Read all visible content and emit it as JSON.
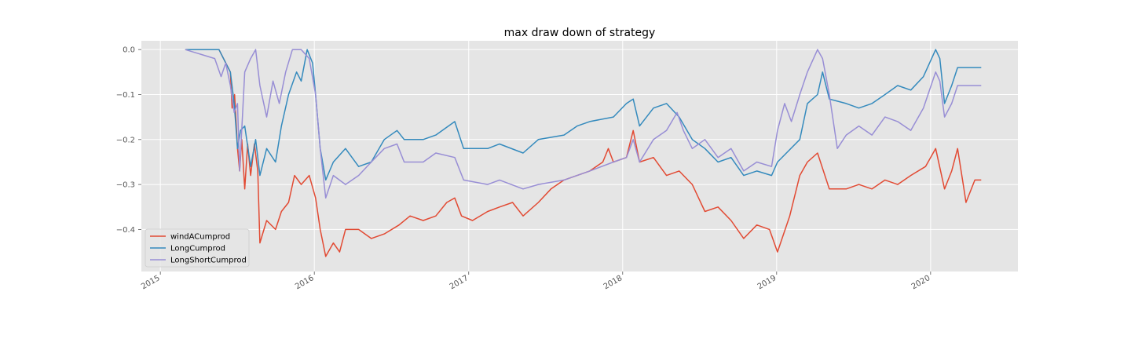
{
  "chart_data": {
    "type": "line",
    "title": "max draw down of strategy",
    "xlabel": "",
    "ylabel": "",
    "xlim": [
      "2014-11-17",
      "2020-07-26"
    ],
    "ylim": [
      -0.4935,
      0.0195
    ],
    "x_ticks": [
      "2015-01-01",
      "2016-01-01",
      "2017-01-01",
      "2018-01-01",
      "2019-01-01",
      "2020-01-01"
    ],
    "x_tick_labels": [
      "2015",
      "2016",
      "2017",
      "2018",
      "2019",
      "2020"
    ],
    "y_ticks": [
      0.0,
      -0.1,
      -0.2,
      -0.3,
      -0.4
    ],
    "y_tick_labels": [
      "0.0",
      "−0.1",
      "−0.2",
      "−0.3",
      "−0.4"
    ],
    "grid": true,
    "legend_position": "lower-left",
    "background": "#e5e5e5",
    "series": [
      {
        "name": "windACumprod",
        "color": "#e24a33",
        "points": [
          [
            "2015-03-01",
            0.0
          ],
          [
            "2015-05-20",
            0.0
          ],
          [
            "2015-06-16",
            -0.05
          ],
          [
            "2015-06-20",
            -0.13
          ],
          [
            "2015-06-26",
            -0.1
          ],
          [
            "2015-07-03",
            -0.22
          ],
          [
            "2015-07-08",
            -0.27
          ],
          [
            "2015-07-13",
            -0.2
          ],
          [
            "2015-07-20",
            -0.31
          ],
          [
            "2015-07-27",
            -0.21
          ],
          [
            "2015-08-03",
            -0.28
          ],
          [
            "2015-08-12",
            -0.21
          ],
          [
            "2015-08-20",
            -0.27
          ],
          [
            "2015-08-25",
            -0.43
          ],
          [
            "2015-09-10",
            -0.38
          ],
          [
            "2015-10-01",
            -0.4
          ],
          [
            "2015-10-15",
            -0.36
          ],
          [
            "2015-11-01",
            -0.34
          ],
          [
            "2015-11-15",
            -0.28
          ],
          [
            "2015-12-01",
            -0.3
          ],
          [
            "2015-12-20",
            -0.28
          ],
          [
            "2016-01-04",
            -0.33
          ],
          [
            "2016-01-15",
            -0.4
          ],
          [
            "2016-01-28",
            -0.46
          ],
          [
            "2016-02-15",
            -0.43
          ],
          [
            "2016-03-01",
            -0.45
          ],
          [
            "2016-03-15",
            -0.4
          ],
          [
            "2016-04-15",
            -0.4
          ],
          [
            "2016-05-15",
            -0.42
          ],
          [
            "2016-06-15",
            -0.41
          ],
          [
            "2016-07-20",
            -0.39
          ],
          [
            "2016-08-15",
            -0.37
          ],
          [
            "2016-09-15",
            -0.38
          ],
          [
            "2016-10-15",
            -0.37
          ],
          [
            "2016-11-10",
            -0.34
          ],
          [
            "2016-11-29",
            -0.33
          ],
          [
            "2016-12-15",
            -0.37
          ],
          [
            "2017-01-10",
            -0.38
          ],
          [
            "2017-02-15",
            -0.36
          ],
          [
            "2017-03-15",
            -0.35
          ],
          [
            "2017-04-15",
            -0.34
          ],
          [
            "2017-05-10",
            -0.37
          ],
          [
            "2017-06-15",
            -0.34
          ],
          [
            "2017-07-15",
            -0.31
          ],
          [
            "2017-08-15",
            -0.29
          ],
          [
            "2017-09-15",
            -0.28
          ],
          [
            "2017-10-15",
            -0.27
          ],
          [
            "2017-11-15",
            -0.25
          ],
          [
            "2017-11-28",
            -0.22
          ],
          [
            "2017-12-10",
            -0.25
          ],
          [
            "2018-01-10",
            -0.24
          ],
          [
            "2018-01-26",
            -0.18
          ],
          [
            "2018-02-10",
            -0.25
          ],
          [
            "2018-03-15",
            -0.24
          ],
          [
            "2018-04-15",
            -0.28
          ],
          [
            "2018-05-15",
            -0.27
          ],
          [
            "2018-06-15",
            -0.3
          ],
          [
            "2018-07-15",
            -0.36
          ],
          [
            "2018-08-15",
            -0.35
          ],
          [
            "2018-09-15",
            -0.38
          ],
          [
            "2018-10-15",
            -0.42
          ],
          [
            "2018-11-15",
            -0.39
          ],
          [
            "2018-12-15",
            -0.4
          ],
          [
            "2019-01-03",
            -0.45
          ],
          [
            "2019-02-01",
            -0.37
          ],
          [
            "2019-02-25",
            -0.28
          ],
          [
            "2019-03-15",
            -0.25
          ],
          [
            "2019-04-08",
            -0.23
          ],
          [
            "2019-05-06",
            -0.31
          ],
          [
            "2019-06-15",
            -0.31
          ],
          [
            "2019-07-15",
            -0.3
          ],
          [
            "2019-08-15",
            -0.31
          ],
          [
            "2019-09-15",
            -0.29
          ],
          [
            "2019-10-15",
            -0.3
          ],
          [
            "2019-11-15",
            -0.28
          ],
          [
            "2019-12-20",
            -0.26
          ],
          [
            "2020-01-13",
            -0.22
          ],
          [
            "2020-02-03",
            -0.31
          ],
          [
            "2020-02-20",
            -0.27
          ],
          [
            "2020-03-05",
            -0.22
          ],
          [
            "2020-03-20",
            -0.31
          ],
          [
            "2020-03-25",
            -0.34
          ],
          [
            "2020-04-15",
            -0.29
          ],
          [
            "2020-04-30",
            -0.29
          ]
        ]
      },
      {
        "name": "LongCumprod",
        "color": "#348abd",
        "points": [
          [
            "2015-03-01",
            0.0
          ],
          [
            "2015-05-20",
            0.0
          ],
          [
            "2015-06-16",
            -0.05
          ],
          [
            "2015-06-25",
            -0.12
          ],
          [
            "2015-07-03",
            -0.22
          ],
          [
            "2015-07-10",
            -0.18
          ],
          [
            "2015-07-20",
            -0.17
          ],
          [
            "2015-08-03",
            -0.26
          ],
          [
            "2015-08-15",
            -0.2
          ],
          [
            "2015-08-25",
            -0.28
          ],
          [
            "2015-09-10",
            -0.22
          ],
          [
            "2015-10-01",
            -0.25
          ],
          [
            "2015-10-15",
            -0.17
          ],
          [
            "2015-11-01",
            -0.1
          ],
          [
            "2015-11-20",
            -0.05
          ],
          [
            "2015-12-01",
            -0.07
          ],
          [
            "2015-12-15",
            0.0
          ],
          [
            "2015-12-28",
            -0.03
          ],
          [
            "2016-01-04",
            -0.1
          ],
          [
            "2016-01-15",
            -0.22
          ],
          [
            "2016-01-28",
            -0.29
          ],
          [
            "2016-02-15",
            -0.25
          ],
          [
            "2016-03-15",
            -0.22
          ],
          [
            "2016-04-15",
            -0.26
          ],
          [
            "2016-05-15",
            -0.25
          ],
          [
            "2016-06-15",
            -0.2
          ],
          [
            "2016-07-15",
            -0.18
          ],
          [
            "2016-08-01",
            -0.2
          ],
          [
            "2016-09-15",
            -0.2
          ],
          [
            "2016-10-15",
            -0.19
          ],
          [
            "2016-11-29",
            -0.16
          ],
          [
            "2016-12-20",
            -0.22
          ],
          [
            "2017-02-15",
            -0.22
          ],
          [
            "2017-03-15",
            -0.21
          ],
          [
            "2017-05-10",
            -0.23
          ],
          [
            "2017-06-15",
            -0.2
          ],
          [
            "2017-08-15",
            -0.19
          ],
          [
            "2017-09-15",
            -0.17
          ],
          [
            "2017-10-15",
            -0.16
          ],
          [
            "2017-12-10",
            -0.15
          ],
          [
            "2018-01-10",
            -0.12
          ],
          [
            "2018-01-26",
            -0.11
          ],
          [
            "2018-02-10",
            -0.17
          ],
          [
            "2018-03-15",
            -0.13
          ],
          [
            "2018-04-15",
            -0.12
          ],
          [
            "2018-05-15",
            -0.15
          ],
          [
            "2018-06-15",
            -0.2
          ],
          [
            "2018-07-15",
            -0.22
          ],
          [
            "2018-08-15",
            -0.25
          ],
          [
            "2018-09-15",
            -0.24
          ],
          [
            "2018-10-15",
            -0.28
          ],
          [
            "2018-11-15",
            -0.27
          ],
          [
            "2018-12-20",
            -0.28
          ],
          [
            "2019-01-03",
            -0.25
          ],
          [
            "2019-02-25",
            -0.2
          ],
          [
            "2019-03-15",
            -0.12
          ],
          [
            "2019-04-08",
            -0.1
          ],
          [
            "2019-04-20",
            -0.05
          ],
          [
            "2019-05-06",
            -0.11
          ],
          [
            "2019-06-15",
            -0.12
          ],
          [
            "2019-07-15",
            -0.13
          ],
          [
            "2019-08-15",
            -0.12
          ],
          [
            "2019-09-15",
            -0.1
          ],
          [
            "2019-10-15",
            -0.08
          ],
          [
            "2019-11-15",
            -0.09
          ],
          [
            "2019-12-15",
            -0.06
          ],
          [
            "2020-01-13",
            0.0
          ],
          [
            "2020-01-23",
            -0.02
          ],
          [
            "2020-02-03",
            -0.12
          ],
          [
            "2020-02-20",
            -0.08
          ],
          [
            "2020-03-05",
            -0.04
          ],
          [
            "2020-04-30",
            -0.04
          ]
        ]
      },
      {
        "name": "LongShortCumprod",
        "color": "#988ed5",
        "points": [
          [
            "2015-03-01",
            0.0
          ],
          [
            "2015-05-10",
            -0.02
          ],
          [
            "2015-05-25",
            -0.06
          ],
          [
            "2015-06-05",
            -0.03
          ],
          [
            "2015-06-16",
            -0.08
          ],
          [
            "2015-06-25",
            -0.14
          ],
          [
            "2015-07-03",
            -0.12
          ],
          [
            "2015-07-08",
            -0.27
          ],
          [
            "2015-07-20",
            -0.05
          ],
          [
            "2015-08-03",
            -0.02
          ],
          [
            "2015-08-15",
            0.0
          ],
          [
            "2015-08-25",
            -0.08
          ],
          [
            "2015-09-10",
            -0.15
          ],
          [
            "2015-09-25",
            -0.07
          ],
          [
            "2015-10-10",
            -0.12
          ],
          [
            "2015-10-25",
            -0.05
          ],
          [
            "2015-11-10",
            0.0
          ],
          [
            "2015-12-01",
            0.0
          ],
          [
            "2015-12-20",
            -0.02
          ],
          [
            "2016-01-04",
            -0.1
          ],
          [
            "2016-01-15",
            -0.22
          ],
          [
            "2016-01-28",
            -0.33
          ],
          [
            "2016-02-15",
            -0.28
          ],
          [
            "2016-03-15",
            -0.3
          ],
          [
            "2016-04-15",
            -0.28
          ],
          [
            "2016-05-15",
            -0.25
          ],
          [
            "2016-06-15",
            -0.22
          ],
          [
            "2016-07-15",
            -0.21
          ],
          [
            "2016-08-01",
            -0.25
          ],
          [
            "2016-09-15",
            -0.25
          ],
          [
            "2016-10-15",
            -0.23
          ],
          [
            "2016-11-29",
            -0.24
          ],
          [
            "2016-12-20",
            -0.29
          ],
          [
            "2017-02-15",
            -0.3
          ],
          [
            "2017-03-15",
            -0.29
          ],
          [
            "2017-05-10",
            -0.31
          ],
          [
            "2017-06-15",
            -0.3
          ],
          [
            "2017-08-15",
            -0.29
          ],
          [
            "2017-09-15",
            -0.28
          ],
          [
            "2017-10-15",
            -0.27
          ],
          [
            "2017-12-10",
            -0.25
          ],
          [
            "2018-01-10",
            -0.24
          ],
          [
            "2018-01-26",
            -0.2
          ],
          [
            "2018-02-10",
            -0.25
          ],
          [
            "2018-03-15",
            -0.2
          ],
          [
            "2018-04-15",
            -0.18
          ],
          [
            "2018-05-10",
            -0.14
          ],
          [
            "2018-05-25",
            -0.18
          ],
          [
            "2018-06-15",
            -0.22
          ],
          [
            "2018-07-15",
            -0.2
          ],
          [
            "2018-08-15",
            -0.24
          ],
          [
            "2018-09-15",
            -0.22
          ],
          [
            "2018-10-15",
            -0.27
          ],
          [
            "2018-11-15",
            -0.25
          ],
          [
            "2018-12-20",
            -0.26
          ],
          [
            "2019-01-03",
            -0.18
          ],
          [
            "2019-01-20",
            -0.12
          ],
          [
            "2019-02-05",
            -0.16
          ],
          [
            "2019-02-25",
            -0.1
          ],
          [
            "2019-03-15",
            -0.05
          ],
          [
            "2019-04-08",
            0.0
          ],
          [
            "2019-04-20",
            -0.02
          ],
          [
            "2019-05-06",
            -0.1
          ],
          [
            "2019-05-25",
            -0.22
          ],
          [
            "2019-06-15",
            -0.19
          ],
          [
            "2019-07-15",
            -0.17
          ],
          [
            "2019-08-15",
            -0.19
          ],
          [
            "2019-09-15",
            -0.15
          ],
          [
            "2019-10-15",
            -0.16
          ],
          [
            "2019-11-15",
            -0.18
          ],
          [
            "2019-12-15",
            -0.13
          ],
          [
            "2020-01-13",
            -0.05
          ],
          [
            "2020-01-23",
            -0.07
          ],
          [
            "2020-02-03",
            -0.15
          ],
          [
            "2020-02-20",
            -0.12
          ],
          [
            "2020-03-05",
            -0.08
          ],
          [
            "2020-04-30",
            -0.08
          ]
        ]
      }
    ]
  }
}
